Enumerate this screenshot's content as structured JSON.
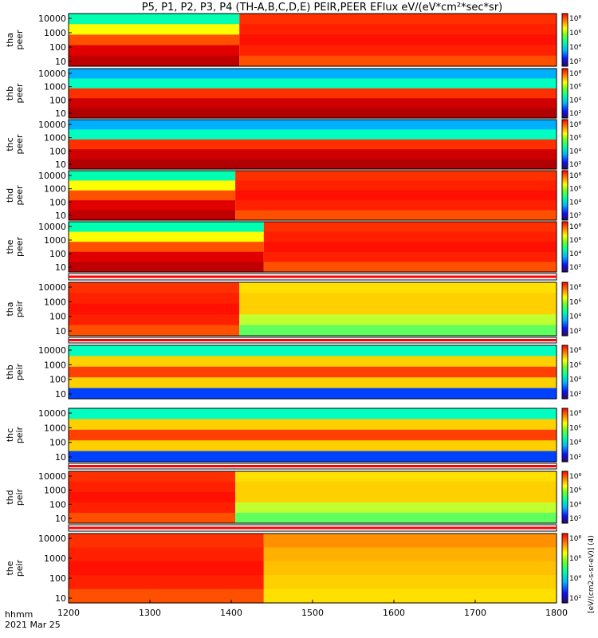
{
  "chart_data": {
    "type": "heatmap",
    "title": "P5, P1, P2, P3, P4 (TH-A,B,C,D,E) PEIR,PEER EFlux eV/(eV*cm²*sec*sr)",
    "x_ticks": [
      "1200",
      "1300",
      "1400",
      "1500",
      "1600",
      "1700",
      "1800"
    ],
    "xlim": [
      1200,
      1800
    ],
    "x_label_lines": [
      "hhmm",
      "2021 Mar 25"
    ],
    "y_scale": "log",
    "y_ticks": [
      "10",
      "100",
      "1000",
      "10000"
    ],
    "colorbar_ticks": [
      "10⁸",
      "10⁶",
      "10⁴",
      "10²"
    ],
    "colorbar_label": "[eV/(cm2-s-sr-eV)] (4)",
    "panels": [
      {
        "probe": "tha",
        "instrument": "peer",
        "line1": "tha",
        "line2": "peer",
        "transition_hhmm": 1410,
        "quiet_level": "green-red",
        "active_level": "red"
      },
      {
        "probe": "thb",
        "instrument": "peer",
        "line1": "thb",
        "line2": "peer",
        "transition_hhmm": null,
        "quiet_level": "steady-red-band",
        "active_level": "steady-red-band"
      },
      {
        "probe": "thc",
        "instrument": "peer",
        "line1": "thc",
        "line2": "peer",
        "transition_hhmm": null,
        "quiet_level": "steady-red-band",
        "active_level": "steady-red-band"
      },
      {
        "probe": "thd",
        "instrument": "peer",
        "line1": "thd",
        "line2": "peer",
        "transition_hhmm": 1405,
        "quiet_level": "green-red",
        "active_level": "red"
      },
      {
        "probe": "the",
        "instrument": "peer",
        "line1": "the",
        "line2": "peer",
        "transition_hhmm": 1440,
        "quiet_level": "green-red",
        "active_level": "red"
      },
      {
        "probe": "tha",
        "instrument": "peir",
        "line1": "tha",
        "line2": "peir",
        "transition_hhmm": 1410,
        "quiet_level": "red",
        "active_level": "yellow-green"
      },
      {
        "probe": "thb",
        "instrument": "peir",
        "line1": "thb",
        "line2": "peir",
        "transition_hhmm": null,
        "quiet_level": "orange-band",
        "active_level": "orange-band"
      },
      {
        "probe": "thc",
        "instrument": "peir",
        "line1": "thc",
        "line2": "peir",
        "transition_hhmm": null,
        "quiet_level": "orange-band",
        "active_level": "orange-band"
      },
      {
        "probe": "thd",
        "instrument": "peir",
        "line1": "thd",
        "line2": "peir",
        "transition_hhmm": 1405,
        "quiet_level": "red",
        "active_level": "yellow-green"
      },
      {
        "probe": "the",
        "instrument": "peir",
        "line1": "the",
        "line2": "peir",
        "transition_hhmm": 1440,
        "quiet_level": "red",
        "active_level": "yellow"
      }
    ]
  }
}
